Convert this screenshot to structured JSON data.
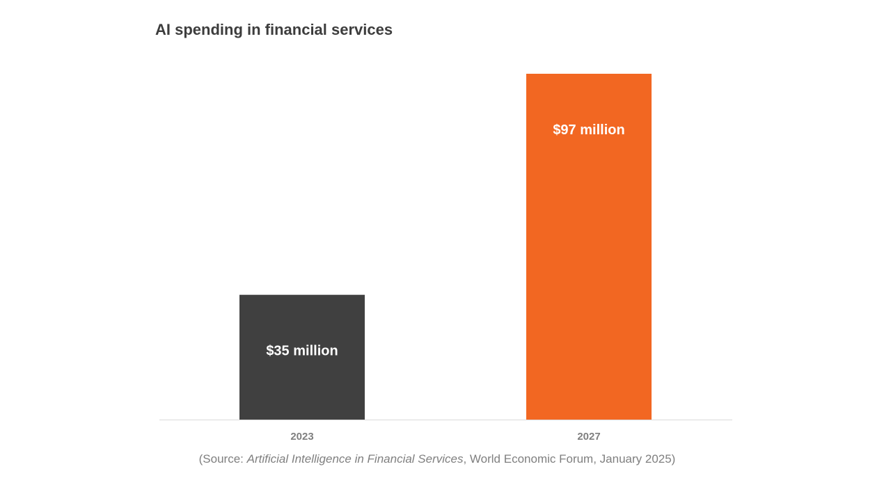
{
  "chart_data": {
    "type": "bar",
    "title": "AI spending in financial services",
    "categories": [
      "2023",
      "2027"
    ],
    "values": [
      35,
      97
    ],
    "data_labels": [
      "$35 million",
      "$97 million"
    ],
    "bar_colors": [
      "#404040",
      "#f26722"
    ],
    "ylim": [
      0,
      97
    ],
    "xlabel": "",
    "ylabel": "",
    "grid": false,
    "legend": "none"
  },
  "source": {
    "prefix": "(Source: ",
    "publication": "Artificial Intelligence in Financial Services",
    "suffix": ", World Economic Forum, January 2025)"
  },
  "colors": {
    "text_dark": "#3d3d3d",
    "tick_text": "#7f7f7f",
    "axis_line": "#d9d9d9",
    "label_text": "#ffffff"
  }
}
